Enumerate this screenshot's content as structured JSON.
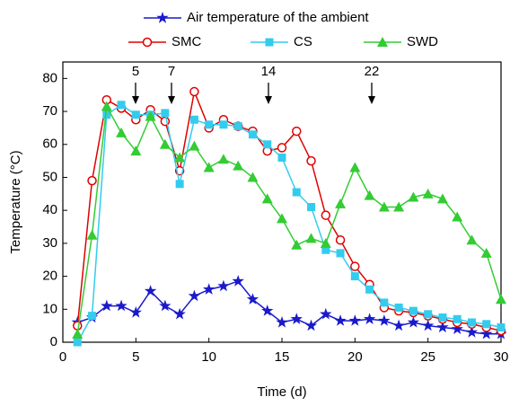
{
  "chart_data": {
    "type": "line",
    "x_label": "Time (d)",
    "y_label": "Temperature (°C)",
    "xlim": [
      0,
      30
    ],
    "ylim": [
      0,
      85
    ],
    "xticks": [
      0,
      5,
      10,
      15,
      20,
      25,
      30
    ],
    "yticks": [
      0,
      10,
      20,
      30,
      40,
      50,
      60,
      70,
      80
    ],
    "x": [
      1,
      2,
      3,
      4,
      5,
      6,
      7,
      8,
      9,
      10,
      11,
      12,
      13,
      14,
      15,
      16,
      17,
      18,
      19,
      20,
      21,
      22,
      23,
      24,
      25,
      26,
      27,
      28,
      29,
      30
    ],
    "annotations": [
      "5",
      "7",
      "14",
      "22"
    ],
    "series": [
      {
        "name": "Air temperature of the ambient",
        "color": "#1a1acc",
        "marker": "star",
        "values": [
          6,
          7.5,
          11,
          11,
          9,
          15.5,
          11,
          8.5,
          14,
          16,
          17,
          18.5,
          13,
          9.5,
          6,
          7,
          5,
          8.5,
          6.5,
          6.5,
          7,
          6.5,
          5,
          6,
          5,
          4.5,
          4,
          3,
          2.5,
          2.5
        ]
      },
      {
        "name": "SMC",
        "color": "#e00000",
        "marker": "circle",
        "values": [
          5,
          49,
          73.5,
          71,
          67.5,
          70.5,
          67,
          52,
          76,
          65,
          67.5,
          65.5,
          64,
          58,
          59,
          64,
          55,
          38.5,
          31,
          23,
          17.5,
          10.5,
          9.5,
          9,
          8,
          7,
          6,
          5.5,
          4.5,
          3.5
        ]
      },
      {
        "name": "CS",
        "color": "#33ccee",
        "marker": "square",
        "values": [
          0,
          8,
          69,
          72,
          69,
          69,
          69.5,
          48,
          67.5,
          66,
          66,
          65.5,
          63,
          60,
          56,
          45.5,
          41,
          28,
          27,
          20,
          16,
          12,
          10.5,
          9.5,
          8.5,
          7.5,
          7,
          6,
          5.5,
          4.5
        ]
      },
      {
        "name": "SWD",
        "color": "#33cc33",
        "marker": "triangle",
        "values": [
          2.5,
          32.5,
          71.5,
          63.5,
          58,
          68.5,
          60,
          56,
          59.5,
          53,
          55.5,
          53.5,
          50,
          43.5,
          37.5,
          29.5,
          31.5,
          30,
          42,
          53,
          44.5,
          41,
          41,
          44,
          45,
          43.5,
          38,
          31,
          27,
          13
        ]
      }
    ]
  }
}
